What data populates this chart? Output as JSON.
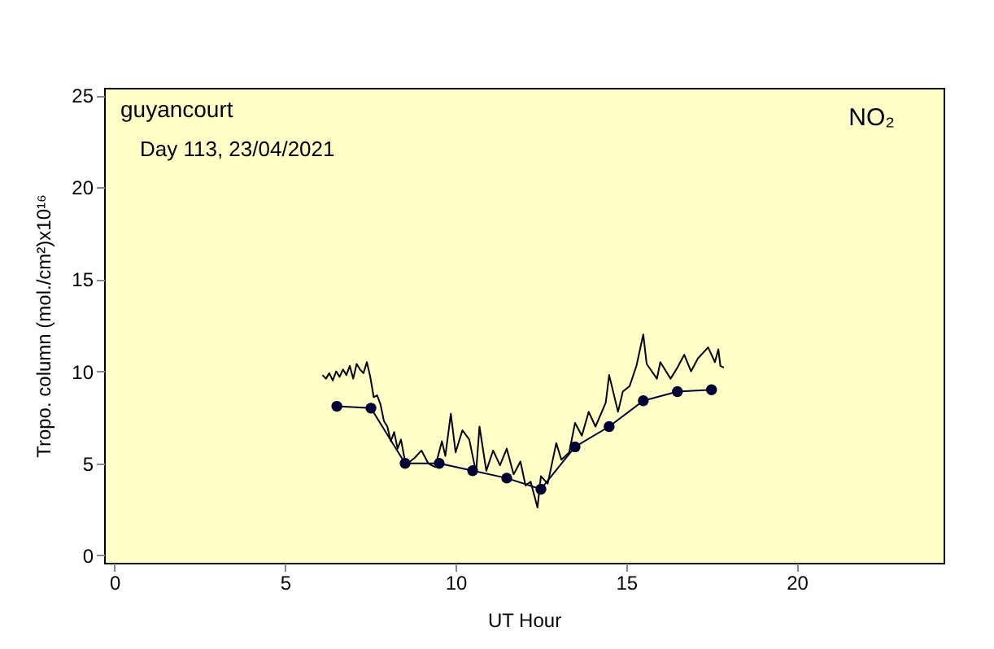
{
  "chart_data": {
    "type": "line",
    "xlabel": "UT Hour",
    "ylabel": "Tropo. column (mol./cm²)x10¹⁶",
    "annotations": [
      "guyancourt",
      "Day 113, 23/04/2021",
      "NO₂"
    ],
    "xlim": [
      -0.3,
      24.3
    ],
    "ylim": [
      -0.4,
      25.4
    ],
    "xticks": [
      0,
      5,
      10,
      15,
      20
    ],
    "yticks": [
      0,
      5,
      10,
      15,
      20,
      25
    ],
    "grid": false,
    "series": [
      {
        "color": "#000000",
        "marker": "none",
        "x": [
          6.1,
          6.2,
          6.3,
          6.4,
          6.5,
          6.6,
          6.7,
          6.8,
          6.9,
          7.0,
          7.1,
          7.2,
          7.3,
          7.4,
          7.5,
          7.6,
          7.7,
          7.8,
          7.9,
          8.0,
          8.1,
          8.2,
          8.3,
          8.4,
          8.5,
          8.6,
          8.8,
          9.0,
          9.2,
          9.4,
          9.6,
          9.7,
          9.86,
          10.0,
          10.2,
          10.4,
          10.6,
          10.7,
          10.9,
          11.1,
          11.3,
          11.5,
          11.7,
          11.9,
          12.05,
          12.2,
          12.4,
          12.5,
          12.7,
          12.95,
          13.1,
          13.33,
          13.5,
          13.7,
          13.9,
          14.1,
          14.4,
          14.5,
          14.76,
          14.9,
          15.1,
          15.3,
          15.5,
          15.6,
          15.9,
          16.0,
          16.3,
          16.5,
          16.7,
          16.9,
          17.1,
          17.4,
          17.6,
          17.7,
          17.76,
          17.86
        ],
        "values": [
          9.8,
          9.6,
          9.9,
          9.5,
          10.0,
          9.7,
          10.1,
          9.8,
          10.3,
          9.6,
          10.4,
          10.1,
          9.9,
          10.5,
          9.7,
          8.6,
          8.7,
          8.2,
          7.3,
          7.0,
          6.2,
          6.7,
          5.8,
          6.3,
          5.3,
          5.0,
          5.3,
          5.7,
          5.0,
          4.8,
          6.2,
          5.4,
          7.7,
          5.6,
          6.8,
          6.3,
          4.5,
          7.0,
          4.6,
          5.7,
          4.9,
          5.8,
          4.4,
          5.1,
          3.8,
          4.0,
          2.6,
          4.3,
          3.9,
          6.1,
          5.2,
          5.6,
          7.2,
          6.5,
          7.8,
          7.0,
          8.3,
          9.8,
          7.8,
          8.9,
          9.2,
          10.3,
          12.0,
          10.4,
          9.6,
          10.5,
          9.6,
          10.2,
          10.9,
          10.0,
          10.7,
          11.3,
          10.5,
          11.2,
          10.3,
          10.2
        ]
      },
      {
        "color": "#000033",
        "marker": "circle",
        "x": [
          6.52,
          7.52,
          8.52,
          9.52,
          10.5,
          11.5,
          12.5,
          13.5,
          14.5,
          15.5,
          16.5,
          17.5
        ],
        "values": [
          8.1,
          8.0,
          5.0,
          5.0,
          4.6,
          4.2,
          3.6,
          5.9,
          7.0,
          8.4,
          8.9,
          9.0
        ]
      }
    ]
  }
}
